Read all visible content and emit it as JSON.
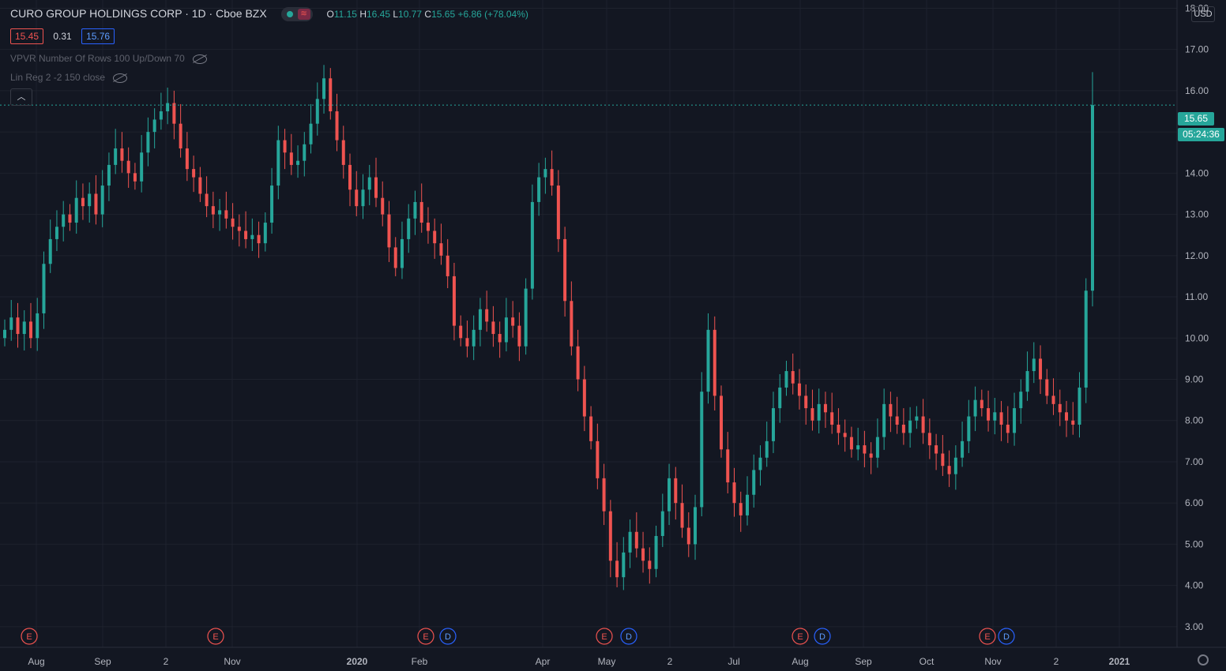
{
  "header": {
    "symbol": "CURO GROUP HOLDINGS CORP",
    "interval": "1D",
    "exchange": "Cboe BZX",
    "ohlc": {
      "o_label": "O",
      "o": "11.15",
      "h_label": "H",
      "h": "16.45",
      "l_label": "L",
      "l": "10.77",
      "c_label": "C",
      "c": "15.65",
      "change": "+6.86 (+78.04%)"
    }
  },
  "quote": {
    "bid": "15.45",
    "spread": "0.31",
    "ask": "15.76"
  },
  "indicators": [
    {
      "label": "VPVR Number Of Rows 100 Up/Down 70"
    },
    {
      "label": "Lin Reg 2 -2 150 close"
    }
  ],
  "currency": "USD",
  "last_price": "15.65",
  "countdown": "05:24:36",
  "colors": {
    "up": "#26a69a",
    "down": "#ef5350",
    "background": "#131722",
    "grid": "#1e222d"
  },
  "chart_data": {
    "type": "candlestick",
    "ylim": [
      2.5,
      18.2
    ],
    "y_ticks": [
      "3.00",
      "4.00",
      "5.00",
      "6.00",
      "7.00",
      "8.00",
      "9.00",
      "10.00",
      "11.00",
      "12.00",
      "13.00",
      "14.00",
      "15.00",
      "16.00",
      "17.00",
      "18.00"
    ],
    "x_ticks": [
      "Aug",
      "Sep",
      "2",
      "Nov",
      "2020",
      "Feb",
      "Apr",
      "May",
      "2",
      "Jul",
      "Aug",
      "Sep",
      "Oct",
      "Nov",
      "2",
      "2021"
    ],
    "events": [
      "E",
      "E",
      "E",
      "D",
      "E",
      "D",
      "E",
      "D",
      "E",
      "D"
    ],
    "closes": [
      10.2,
      10.5,
      10.1,
      10.4,
      10.0,
      10.6,
      11.8,
      12.4,
      12.7,
      13.0,
      12.8,
      13.4,
      13.2,
      13.5,
      13.0,
      13.7,
      14.2,
      14.6,
      14.3,
      14.0,
      13.8,
      14.5,
      15.0,
      15.3,
      15.5,
      15.7,
      15.2,
      14.6,
      14.1,
      13.9,
      13.5,
      13.2,
      13.0,
      13.1,
      12.9,
      12.7,
      12.6,
      12.4,
      12.5,
      12.3,
      12.8,
      13.7,
      14.8,
      14.5,
      14.2,
      14.3,
      14.7,
      15.2,
      15.8,
      16.3,
      15.5,
      14.8,
      14.2,
      13.6,
      13.2,
      13.6,
      13.9,
      13.4,
      13.0,
      12.2,
      11.7,
      12.4,
      12.9,
      13.3,
      12.8,
      12.6,
      12.3,
      12.0,
      11.5,
      10.3,
      10.0,
      9.8,
      10.2,
      10.7,
      10.4,
      10.1,
      9.9,
      10.5,
      10.3,
      9.8,
      11.2,
      13.3,
      13.9,
      14.1,
      13.7,
      12.4,
      10.9,
      9.8,
      9.0,
      8.1,
      7.5,
      6.6,
      5.8,
      4.6,
      4.2,
      4.8,
      5.3,
      4.9,
      4.6,
      4.4,
      5.2,
      5.8,
      6.6,
      6.0,
      5.4,
      5.0,
      5.9,
      8.7,
      10.2,
      8.6,
      7.3,
      6.5,
      6.0,
      5.7,
      6.2,
      6.8,
      7.1,
      7.5,
      8.3,
      8.8,
      9.2,
      8.9,
      8.6,
      8.3,
      8.0,
      8.4,
      8.2,
      7.9,
      7.7,
      7.6,
      7.3,
      7.4,
      7.2,
      7.1,
      7.6,
      8.4,
      8.1,
      7.9,
      7.7,
      8.0,
      8.1,
      7.7,
      7.4,
      7.2,
      6.9,
      6.7,
      7.1,
      7.5,
      8.1,
      8.5,
      8.3,
      8.0,
      8.2,
      7.9,
      7.7,
      8.3,
      8.7,
      9.2,
      9.5,
      9.0,
      8.6,
      8.4,
      8.2,
      8.0,
      7.9,
      8.8,
      11.15,
      15.65
    ]
  }
}
